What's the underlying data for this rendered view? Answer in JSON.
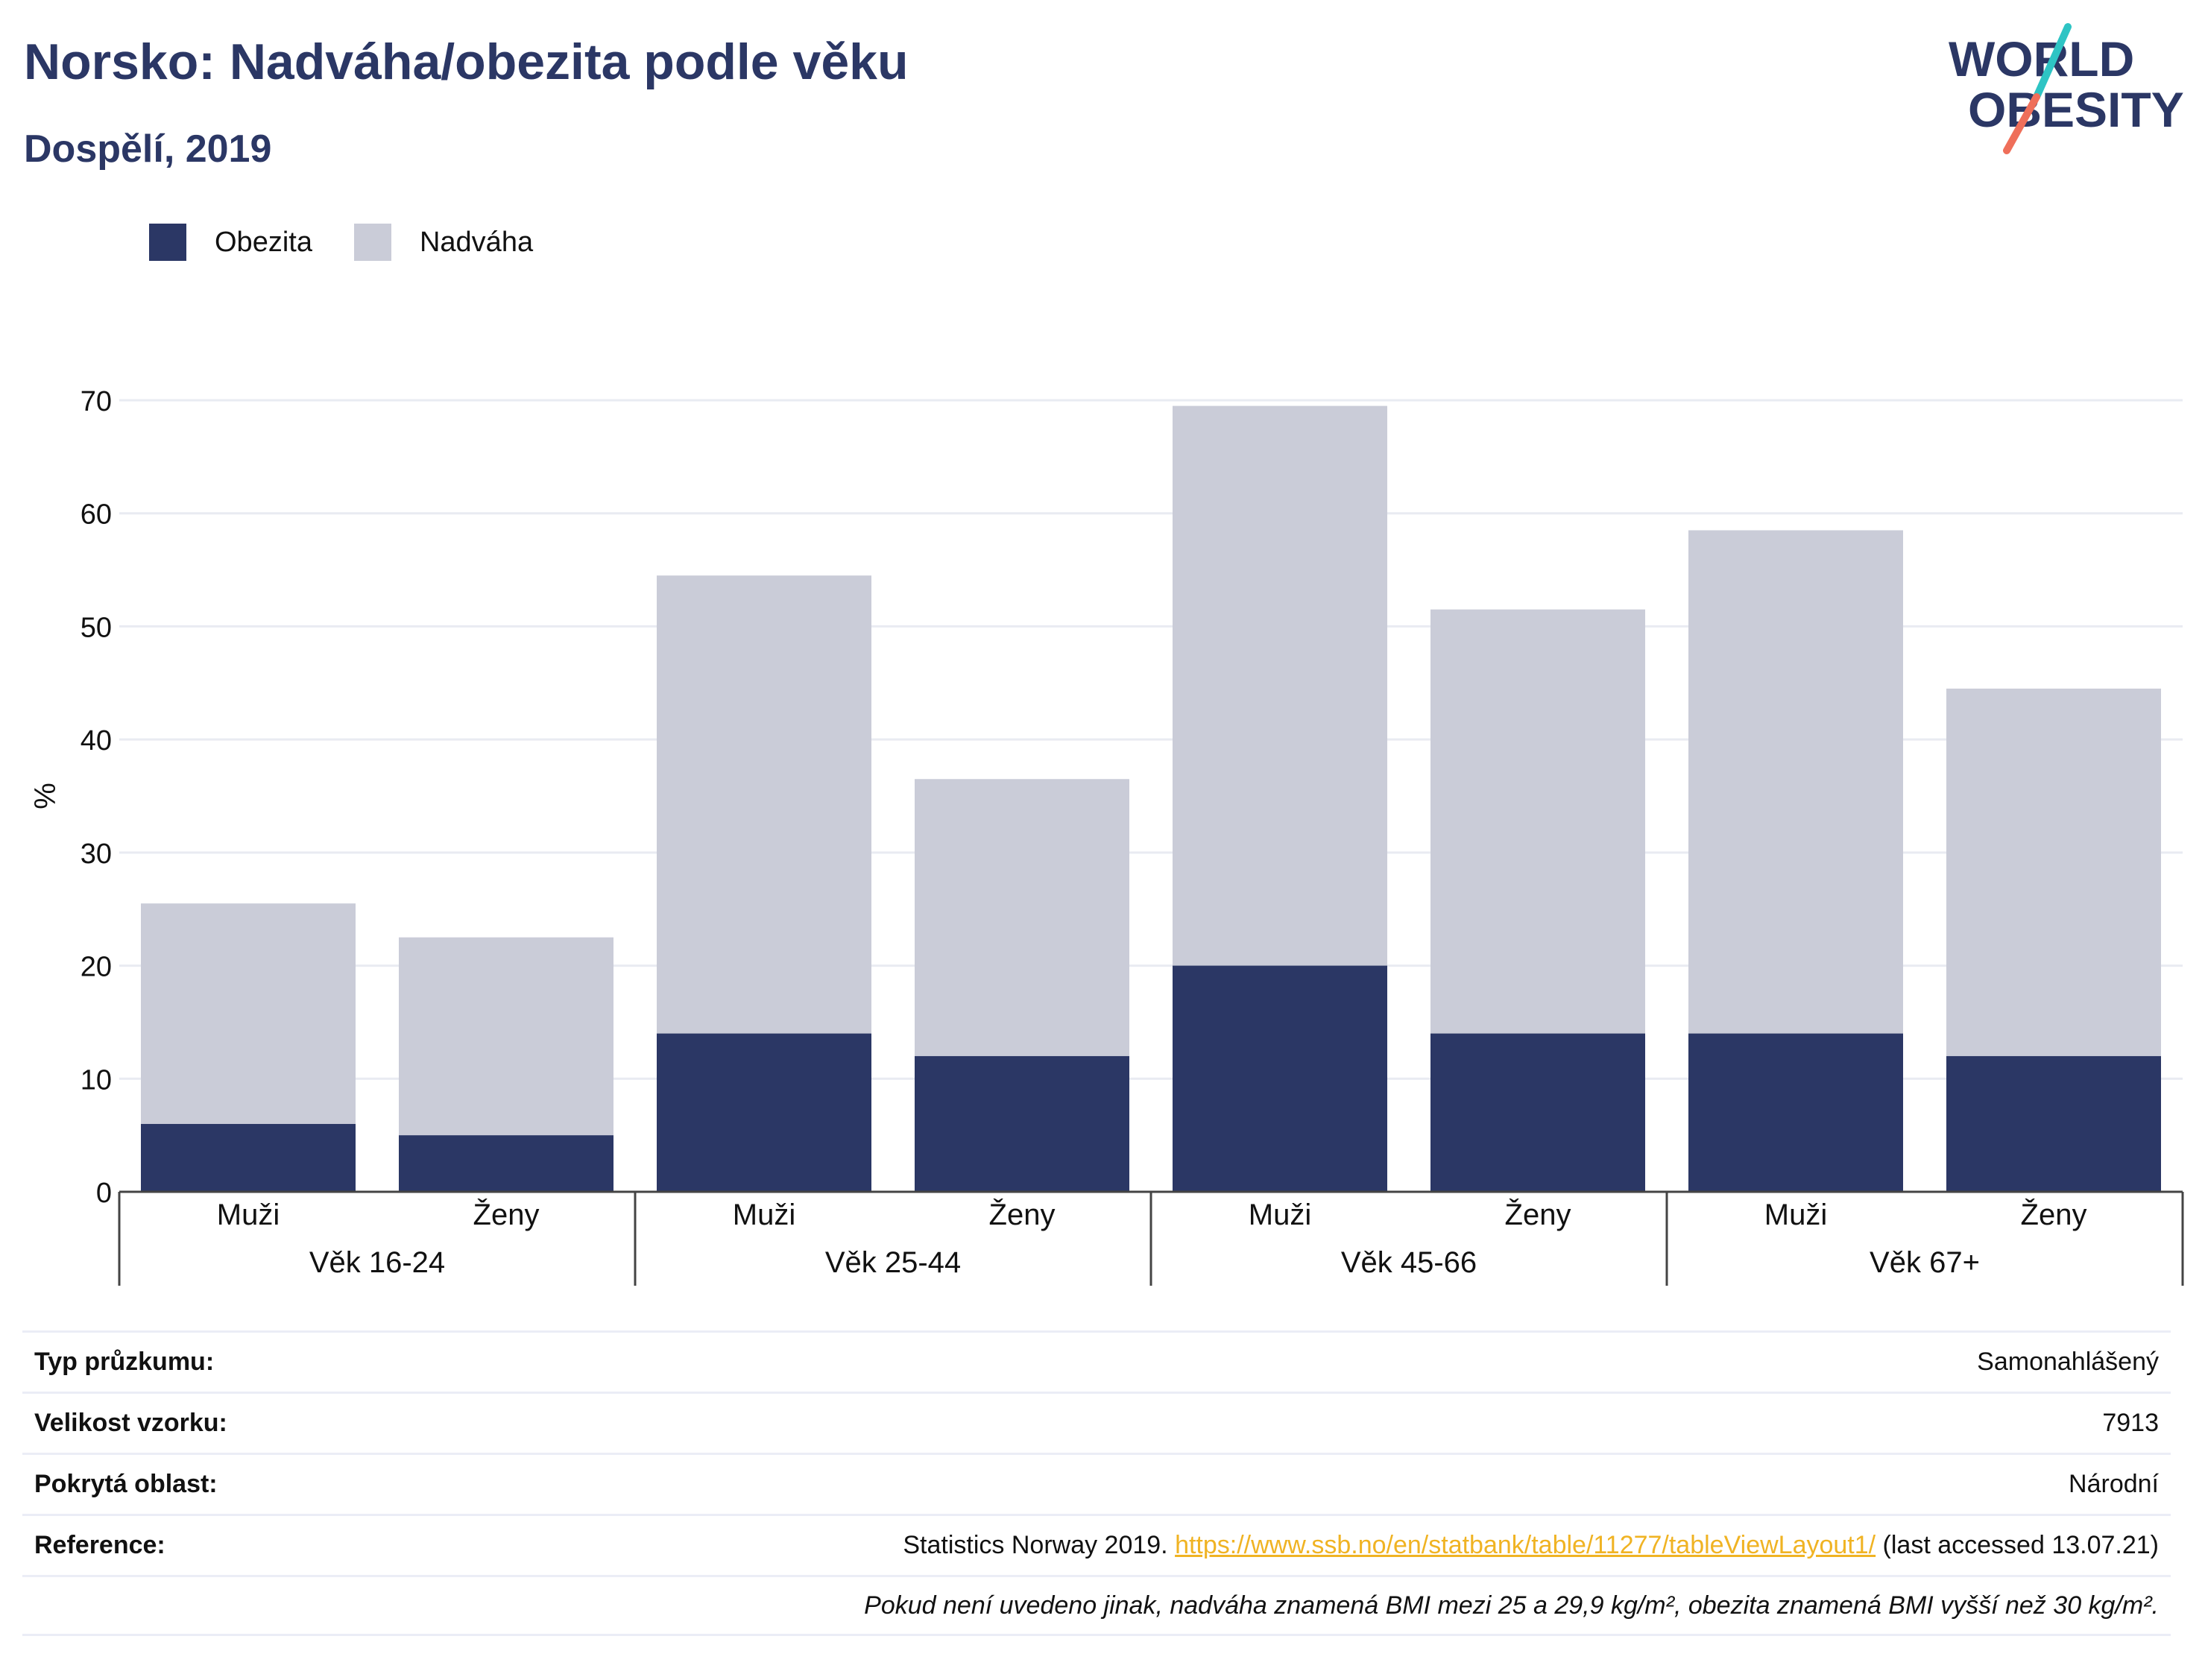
{
  "header": {
    "title": "Norsko: Nadváha/obezita podle věku",
    "subtitle": "Dospělí, 2019"
  },
  "logo": {
    "line1": "WORLD",
    "line2": "OBESITY",
    "text_color": "#2b3765",
    "slash_colors": [
      "#2ec4c4",
      "#ef6f5a"
    ]
  },
  "colors": {
    "obezita": "#2b3765",
    "nadvaha": "#caccd8",
    "grid": "#e9ebf2",
    "axis": "#444444",
    "link": "#f0b323"
  },
  "legend": {
    "items": [
      {
        "label": "Obezita",
        "color": "#2b3765"
      },
      {
        "label": "Nadváha",
        "color": "#caccd8"
      }
    ]
  },
  "chart_data": {
    "type": "bar",
    "stacked": true,
    "title": "",
    "xlabel": "",
    "ylabel": "%",
    "ylim": [
      0,
      70
    ],
    "yticks": [
      0,
      10,
      20,
      30,
      40,
      50,
      60,
      70
    ],
    "grid": true,
    "legend_position": "top-left",
    "groups": [
      "Věk 16-24",
      "Věk 25-44",
      "Věk 45-66",
      "Věk 67+"
    ],
    "categories": [
      "Muži",
      "Ženy",
      "Muži",
      "Ženy",
      "Muži",
      "Ženy",
      "Muži",
      "Ženy"
    ],
    "series": [
      {
        "name": "Obezita",
        "color": "#2b3765",
        "values": [
          6,
          5,
          14,
          12,
          20,
          14,
          14,
          12
        ]
      },
      {
        "name": "Nadváha",
        "color": "#caccd8",
        "values": [
          19.5,
          17.5,
          40.5,
          24.5,
          49.5,
          37.5,
          44.5,
          32.5
        ]
      }
    ]
  },
  "meta": {
    "rows": [
      {
        "label": "Typ průzkumu:",
        "value": "Samonahlášený"
      },
      {
        "label": "Velikost vzorku:",
        "value": "7913"
      },
      {
        "label": "Pokrytá oblast:",
        "value": "Národní"
      }
    ],
    "reference": {
      "label": "Reference:",
      "prefix": "Statistics Norway 2019. ",
      "link": "https://www.ssb.no/en/statbank/table/11277/tableViewLayout1/",
      "suffix": " (last accessed 13.07.21)"
    },
    "note": "Pokud není uvedeno jinak, nadváha znamená BMI mezi 25 a 29,9 kg/m², obezita znamená BMI vyšší než 30 kg/m²."
  }
}
